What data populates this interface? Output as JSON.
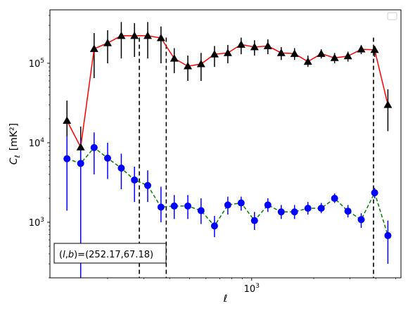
{
  "chart_data": {
    "type": "scatter",
    "xlabel": "ℓ",
    "ylabel_main": "C",
    "ylabel_sub": "ℓ",
    "ylabel_unit": "[mK²]",
    "x_scale": "log",
    "y_scale": "log",
    "xlim": [
      105,
      5300
    ],
    "ylim": [
      200,
      470000
    ],
    "x_ticks": [
      {
        "value": 1000,
        "base": "10",
        "exp": "3"
      }
    ],
    "y_ticks": [
      {
        "value": 1000,
        "base": "10",
        "exp": "3"
      },
      {
        "value": 10000,
        "base": "10",
        "exp": "4"
      },
      {
        "value": 100000,
        "base": "10",
        "exp": "5"
      }
    ],
    "annotation": "(l,b)=(252.17,67.18)",
    "annotation_parts": {
      "l": "l",
      "b": "b",
      "values": ")=(252.17,67.18)"
    },
    "legend": {
      "placement": "top-right",
      "entries": []
    },
    "vlines": [
      {
        "x": 285,
        "y_range": [
          200,
          210000
        ]
      },
      {
        "x": 385,
        "y_range": [
          200,
          210000
        ]
      },
      {
        "x": 3900,
        "y_range": [
          200,
          210000
        ]
      }
    ],
    "series": [
      {
        "marker": "triangle",
        "color": "#000000",
        "line_color": "#ff0000",
        "line_style": "solid",
        "x": [
          127,
          148,
          172,
          200,
          233,
          270,
          313,
          363,
          421,
          490,
          568,
          660,
          766,
          889,
          1032,
          1198,
          1391,
          1614,
          1874,
          2175,
          2525,
          2931,
          3400,
          3950,
          4580,
          5200
        ],
        "y": [
          19000,
          8800,
          152000,
          180000,
          222000,
          222000,
          222000,
          208000,
          115000,
          92000,
          98000,
          130000,
          135000,
          172000,
          160000,
          165000,
          135000,
          132000,
          105000,
          132000,
          117000,
          123000,
          150000,
          148000,
          30000,
          null
        ],
        "yerr_low": [
          12000,
          5000,
          65000,
          100000,
          115000,
          120000,
          115000,
          100000,
          75000,
          60000,
          60000,
          90000,
          100000,
          130000,
          125000,
          130000,
          110000,
          110000,
          90000,
          115000,
          100000,
          105000,
          130000,
          120000,
          14000,
          null
        ],
        "yerr_high": [
          34000,
          16000,
          240000,
          260000,
          330000,
          320000,
          330000,
          290000,
          155000,
          125000,
          135000,
          165000,
          170000,
          210000,
          195000,
          200000,
          160000,
          155000,
          125000,
          150000,
          135000,
          140000,
          170000,
          165000,
          47000,
          null
        ]
      },
      {
        "marker": "circle",
        "color": "#0000ff",
        "line_color": "#008000",
        "line_style": "dashed",
        "x": [
          127,
          148,
          172,
          200,
          233,
          270,
          313,
          363,
          421,
          490,
          568,
          660,
          766,
          889,
          1032,
          1198,
          1391,
          1614,
          1874,
          2175,
          2525,
          2931,
          3400,
          3950,
          4580,
          5200
        ],
        "y": [
          6300,
          5500,
          8700,
          6400,
          4800,
          3400,
          2900,
          1550,
          1600,
          1600,
          1400,
          900,
          1650,
          1750,
          1050,
          1650,
          1350,
          1350,
          1500,
          1500,
          2000,
          1380,
          1080,
          2350,
          680,
          null
        ],
        "yerr_low": [
          1400,
          200,
          4000,
          3500,
          2600,
          1800,
          1800,
          1000,
          1100,
          1100,
          950,
          650,
          1250,
          1400,
          800,
          1350,
          1100,
          1100,
          1250,
          1300,
          1750,
          1150,
          850,
          2000,
          300,
          null
        ],
        "yerr_high": [
          12000,
          11000,
          13500,
          10000,
          7300,
          5000,
          4500,
          2800,
          2200,
          2200,
          2000,
          1200,
          2100,
          2100,
          1350,
          2000,
          1650,
          1650,
          1800,
          1750,
          2300,
          1650,
          1300,
          2700,
          1050,
          null
        ]
      }
    ]
  }
}
